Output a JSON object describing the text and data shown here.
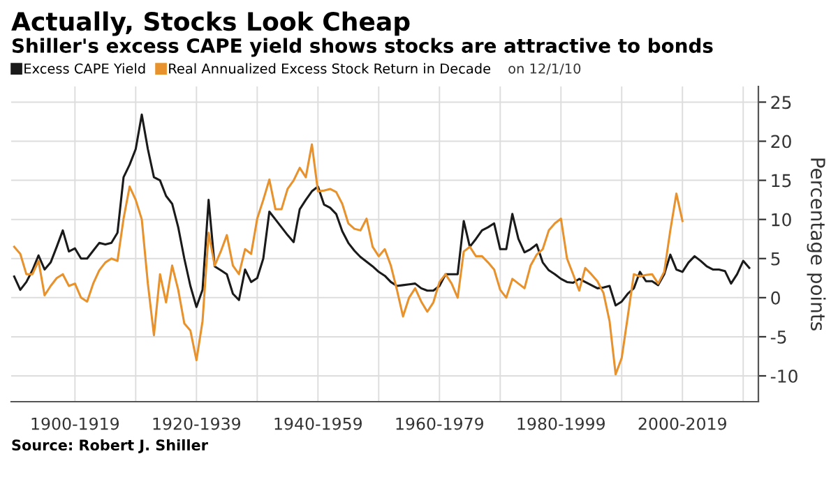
{
  "chart_data": {
    "type": "line",
    "title": "Actually, Stocks Look Cheap",
    "subtitle": "Shiller's excess CAPE yield shows stocks are attractive to bonds",
    "ylabel": "Percentage points",
    "annotations": [
      "on 12/1/10",
      "Source: Robert J. Shiller"
    ],
    "categories": [
      null,
      null,
      null,
      null,
      null,
      null,
      null,
      null,
      null,
      null,
      "1900-1919",
      null,
      null,
      null,
      null,
      null,
      null,
      null,
      null,
      null,
      null,
      null,
      null,
      null,
      null,
      null,
      null,
      null,
      null,
      null,
      "1920-1939",
      null,
      null,
      null,
      null,
      null,
      null,
      null,
      null,
      null,
      null,
      null,
      null,
      null,
      null,
      null,
      null,
      null,
      null,
      null,
      "1940-1959",
      null,
      null,
      null,
      null,
      null,
      null,
      null,
      null,
      null,
      null,
      null,
      null,
      null,
      null,
      null,
      null,
      null,
      null,
      null,
      "1960-1979",
      null,
      null,
      null,
      null,
      null,
      null,
      null,
      null,
      null,
      null,
      null,
      null,
      null,
      null,
      null,
      null,
      null,
      null,
      null,
      "1980-1999",
      null,
      null,
      null,
      null,
      null,
      null,
      null,
      null,
      null,
      null,
      null,
      null,
      null,
      null,
      null,
      null,
      null,
      null,
      null,
      "2000-2019",
      null,
      null,
      null,
      null,
      null,
      null,
      null,
      null,
      null,
      null,
      null,
      null
    ],
    "ylim": [
      -13.3,
      27
    ],
    "yticks": [
      -10,
      -5,
      0,
      5,
      10,
      15,
      20,
      25
    ],
    "grid": true,
    "legend": "top left",
    "line_style": "solid",
    "marker": "none",
    "series": [
      {
        "name": "Excess CAPE Yield",
        "color": "#1a1a1a",
        "values": [
          2.7,
          1.0,
          2.0,
          3.5,
          5.4,
          3.6,
          4.5,
          6.5,
          8.6,
          5.9,
          6.3,
          5.0,
          5.0,
          6.0,
          7.0,
          6.8,
          7.0,
          8.3,
          15.4,
          17.0,
          19.0,
          23.4,
          19.0,
          15.4,
          15.0,
          13.0,
          12.0,
          9.0,
          5.0,
          1.5,
          -1.2,
          1.0,
          12.5,
          4.0,
          3.5,
          3.0,
          0.5,
          -0.3,
          3.6,
          2.0,
          2.5,
          5.0,
          11.0,
          10.0,
          9.0,
          8.0,
          7.1,
          11.3,
          12.5,
          13.6,
          14.2,
          11.9,
          11.5,
          10.7,
          8.5,
          7.0,
          6.0,
          5.2,
          4.6,
          4.0,
          3.3,
          2.8,
          2.0,
          1.5,
          1.6,
          1.7,
          1.8,
          1.2,
          0.9,
          0.9,
          1.5,
          3.0,
          3.0,
          3.0,
          9.8,
          6.5,
          7.5,
          8.6,
          9.0,
          9.5,
          6.2,
          6.2,
          10.7,
          7.5,
          5.8,
          6.2,
          6.8,
          4.5,
          3.5,
          3.0,
          2.4,
          2.0,
          1.9,
          2.4,
          2.0,
          1.6,
          1.2,
          1.3,
          1.5,
          -1.0,
          -0.5,
          0.5,
          1.2,
          3.3,
          2.1,
          2.1,
          1.6,
          3.0,
          5.5,
          3.6,
          3.3,
          4.5,
          5.3,
          4.7,
          4.0,
          3.6,
          3.6,
          3.4,
          1.8,
          3.0,
          4.7,
          3.8,
          null
        ]
      },
      {
        "name": "Real Annualized Excess Stock Return in Decade",
        "color": "#e8922e",
        "values": [
          6.5,
          5.6,
          3.0,
          3.0,
          4.7,
          0.3,
          1.5,
          2.5,
          3.0,
          1.5,
          1.8,
          0.0,
          -0.5,
          1.8,
          3.5,
          4.5,
          5.0,
          4.7,
          10.1,
          14.2,
          12.5,
          10.0,
          1.8,
          -4.8,
          3.0,
          -0.6,
          4.1,
          1.0,
          -3.3,
          -4.2,
          -8.0,
          -3.0,
          8.3,
          4.1,
          5.9,
          8.0,
          4.1,
          3.0,
          6.2,
          5.6,
          10.1,
          12.5,
          15.1,
          11.3,
          11.3,
          13.9,
          15.0,
          16.6,
          15.4,
          19.6,
          13.6,
          13.7,
          13.9,
          13.5,
          12.0,
          9.5,
          8.8,
          8.6,
          10.1,
          6.5,
          5.3,
          6.2,
          4.1,
          1.0,
          -2.4,
          0.0,
          1.2,
          -0.5,
          -1.8,
          -0.6,
          2.0,
          3.0,
          1.8,
          0.0,
          5.9,
          6.5,
          5.3,
          5.3,
          4.5,
          3.6,
          1.0,
          0.0,
          2.4,
          1.8,
          1.2,
          4.1,
          5.5,
          6.2,
          8.6,
          9.5,
          10.1,
          5.0,
          3.0,
          0.9,
          3.8,
          3.0,
          2.1,
          0.6,
          -3.0,
          -9.8,
          -7.7,
          -2.4,
          3.0,
          2.7,
          2.9,
          3.0,
          1.8,
          3.3,
          8.6,
          13.3,
          9.8,
          null,
          null,
          null,
          null,
          null,
          null,
          null,
          null,
          null,
          null,
          null,
          null
        ]
      }
    ]
  }
}
